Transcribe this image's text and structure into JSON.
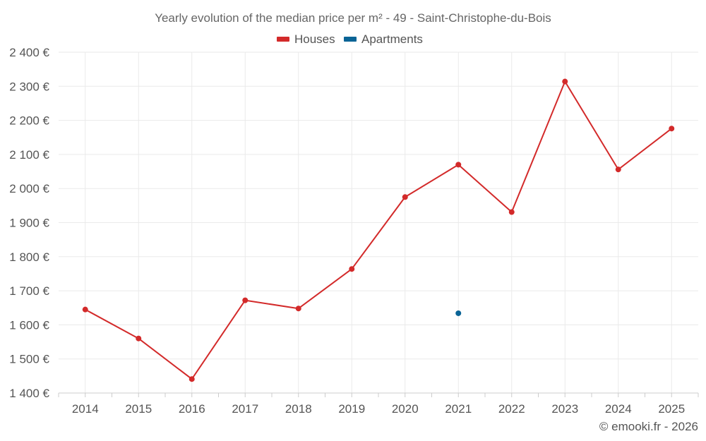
{
  "chart_data": {
    "type": "line",
    "title": "Yearly evolution of the median price per m² - 49 - Saint-Christophe-du-Bois",
    "xlabel": "",
    "ylabel": "",
    "categories": [
      "2014",
      "2015",
      "2016",
      "2017",
      "2018",
      "2019",
      "2020",
      "2021",
      "2022",
      "2023",
      "2024",
      "2025"
    ],
    "ylim": [
      1400,
      2400
    ],
    "yticks": [
      1400,
      1500,
      1600,
      1700,
      1800,
      1900,
      2000,
      2100,
      2200,
      2300,
      2400
    ],
    "ytick_labels": [
      "1 400 €",
      "1 500 €",
      "1 600 €",
      "1 700 €",
      "1 800 €",
      "1 900 €",
      "2 000 €",
      "2 100 €",
      "2 200 €",
      "2 300 €",
      "2 400 €"
    ],
    "grid": true,
    "legend_position": "top-center",
    "series": [
      {
        "name": "Houses",
        "color": "#d32a2a",
        "values": [
          1645,
          1560,
          1441,
          1672,
          1648,
          1764,
          1975,
          2070,
          1931,
          2314,
          2056,
          2176
        ]
      },
      {
        "name": "Apartments",
        "color": "#0a6496",
        "values": [
          null,
          null,
          null,
          null,
          null,
          null,
          null,
          1634,
          null,
          null,
          null,
          null
        ]
      }
    ],
    "credit": "© emooki.fr - 2026"
  }
}
